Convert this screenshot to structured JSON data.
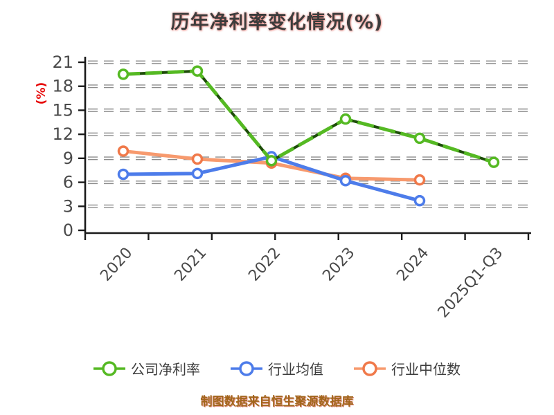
{
  "title": "历年净利率变化情况(%)",
  "y_axis_label": "(%)",
  "footer": "制图数据来自恒生聚源数据库",
  "colors": {
    "background": "#ffffff",
    "title_text": "#3c3c3c",
    "axis": "#1a1a1a",
    "tick_label": "#4a4a4a",
    "grid_outline": "#8c8c8c",
    "grid_core": "#ffffff",
    "y_label_red": "#e60505",
    "footer_text": "#a1661b",
    "legend_text": "#3d3d3d"
  },
  "chart_data": {
    "type": "line",
    "title": "历年净利率变化情况(%)",
    "ylabel": "(%)",
    "xlabel": "",
    "categories": [
      "2020",
      "2021",
      "2022",
      "2023",
      "2024",
      "2025Q1-Q3"
    ],
    "series": [
      {
        "name": "公司净利率",
        "color": "#55b923",
        "marker_color": "#55b923",
        "dash_overlay_color": "#1d4d08",
        "line_style": "solid-with-dark-dash-overlay",
        "values": [
          19.5,
          19.9,
          8.7,
          13.9,
          11.5,
          8.5
        ]
      },
      {
        "name": "行业均值",
        "color": "#4d7cea",
        "marker_color": "#4d7cea",
        "line_style": "solid",
        "values": [
          7.0,
          7.1,
          9.2,
          6.2,
          3.7,
          null
        ]
      },
      {
        "name": "行业中位数",
        "color": "#f79a6e",
        "marker_color": "#f0794a",
        "line_style": "solid",
        "values": [
          9.9,
          8.9,
          8.4,
          6.5,
          6.3,
          null
        ]
      }
    ],
    "ylim": [
      0,
      21
    ],
    "yticks": [
      0,
      3,
      6,
      9,
      12,
      15,
      18,
      21
    ],
    "grid": "horizontal-dashed",
    "legend_position": "bottom"
  }
}
